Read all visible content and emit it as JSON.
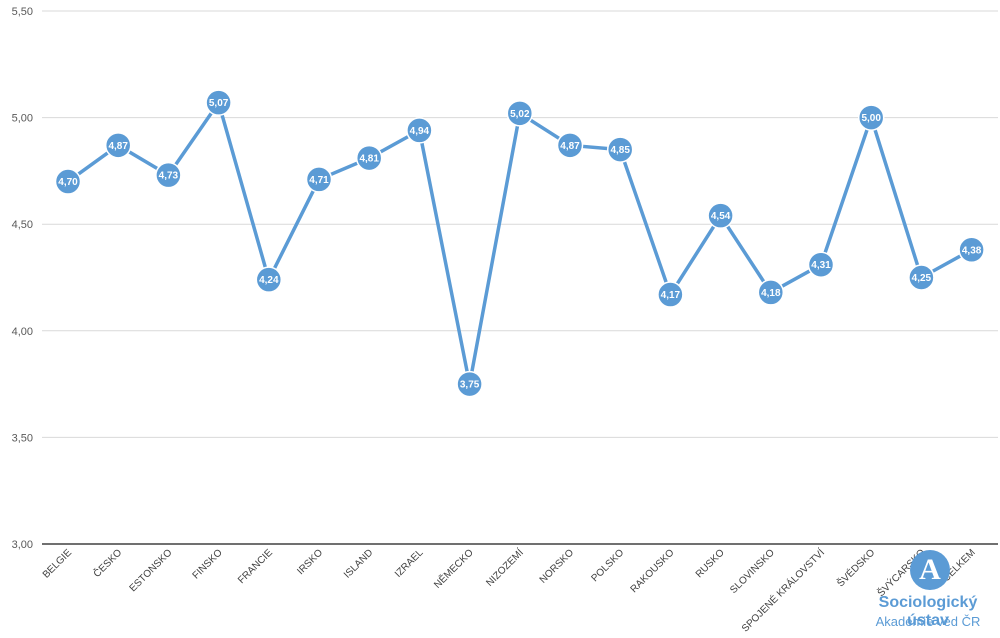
{
  "chart_data": {
    "type": "line",
    "categories": [
      "BELGIE",
      "ČESKO",
      "ESTONSKO",
      "FINSKO",
      "FRANCIE",
      "IRSKO",
      "ISLAND",
      "IZRAEL",
      "NĚMECKO",
      "NIZOZEMÍ",
      "NORSKO",
      "POLSKO",
      "RAKOUSKO",
      "RUSKO",
      "SLOVINSKO",
      "SPOJENÉ KRÁLOVSTVÍ",
      "ŠVÉDSKO",
      "ŠVÝCARSKO",
      "CELKEM"
    ],
    "values": [
      4.7,
      4.87,
      4.73,
      5.07,
      4.24,
      4.71,
      4.81,
      4.94,
      3.75,
      5.02,
      4.87,
      4.85,
      4.17,
      4.54,
      4.18,
      4.31,
      5.0,
      4.25,
      4.38
    ],
    "value_labels": [
      "4,70",
      "4,87",
      "4,73",
      "5,07",
      "4,24",
      "4,71",
      "4,81",
      "4,94",
      "3,75",
      "5,02",
      "4,87",
      "4,85",
      "4,17",
      "4,54",
      "4,18",
      "4,31",
      "5,00",
      "4,25",
      "4,38"
    ],
    "yticks": [
      3.0,
      3.5,
      4.0,
      4.5,
      5.0,
      5.5
    ],
    "ytick_labels": [
      "3,00",
      "3,50",
      "4,00",
      "4,50",
      "5,00",
      "5,50"
    ],
    "ylim": [
      3.0,
      5.5
    ],
    "grid": true,
    "series_color": "#5b9bd5",
    "title": "",
    "xlabel": "",
    "ylabel": ""
  },
  "logo": {
    "glyph": "A",
    "name": "Sociologický ústav",
    "subtitle": "Akademie věd ČR",
    "color": "#5b9bd5"
  }
}
